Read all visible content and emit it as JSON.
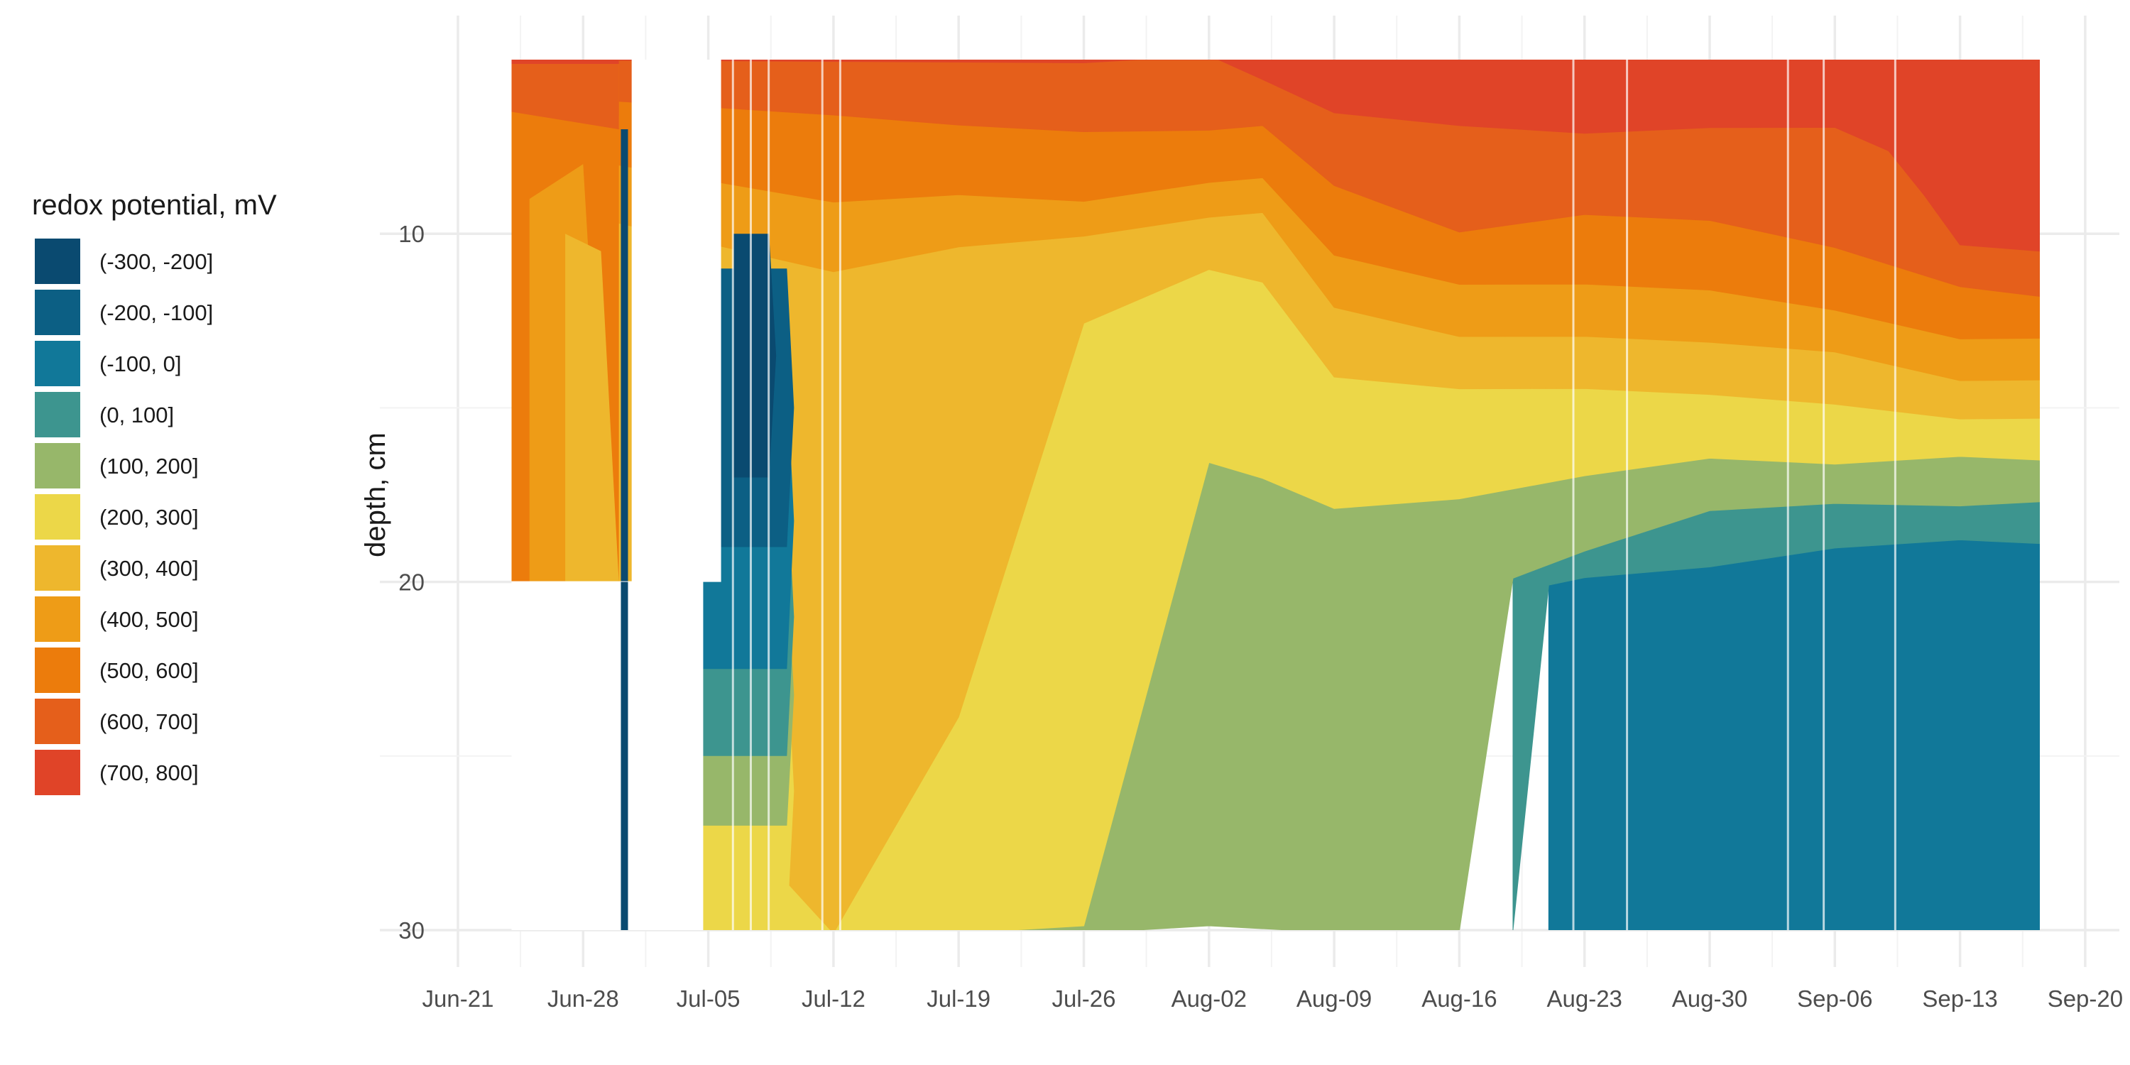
{
  "chart_data": {
    "type": "area",
    "title": "",
    "xlabel": "",
    "ylabel": "depth, cm",
    "legend_title": "redox potential, mV",
    "legend_position": "left",
    "grid": true,
    "x_ticks": [
      "Jun-21",
      "Jun-28",
      "Jul-05",
      "Jul-12",
      "Jul-19",
      "Jul-26",
      "Aug-02",
      "Aug-09",
      "Aug-16",
      "Aug-23",
      "Aug-30",
      "Sep-06",
      "Sep-13",
      "Sep-20"
    ],
    "x_range_days": [
      0,
      91
    ],
    "y_ticks": [
      10,
      20,
      30
    ],
    "ylim": [
      5,
      30
    ],
    "y_reversed": true,
    "classes": [
      {
        "label": "(-300, -200]",
        "color": "#0a4a70"
      },
      {
        "label": "(-200, -100]",
        "color": "#0c5f84"
      },
      {
        "label": "(-100, 0]",
        "color": "#117899"
      },
      {
        "label": "(0, 100]",
        "color": "#3d958f"
      },
      {
        "label": "(100, 200]",
        "color": "#97b76a"
      },
      {
        "label": "(200, 300]",
        "color": "#ecd748"
      },
      {
        "label": "(300, 400]",
        "color": "#eeb72d"
      },
      {
        "label": "(400, 500]",
        "color": "#ee9c17"
      },
      {
        "label": "(500, 600]",
        "color": "#ec7c0c"
      },
      {
        "label": "(600, 700]",
        "color": "#e55f1b"
      },
      {
        "label": "(700, 800]",
        "color": "#e04428"
      }
    ],
    "series": [
      {
        "name": "(700, 800]",
        "class": 10,
        "lower_depth_by_date": [
          [
            "Jun-24",
            5
          ],
          [
            "Jul-26",
            5
          ],
          [
            "Aug-02",
            5
          ],
          [
            "Aug-05",
            5.5
          ],
          [
            "Aug-09",
            6.5
          ],
          [
            "Aug-16",
            7
          ],
          [
            "Aug-23",
            7
          ],
          [
            "Aug-30",
            7
          ],
          [
            "Sep-06",
            7
          ],
          [
            "Sep-09",
            7.5
          ],
          [
            "Sep-11",
            9
          ],
          [
            "Sep-13",
            10.3
          ],
          [
            "Sep-18",
            10.5
          ]
        ]
      },
      {
        "name": "(600, 700]",
        "class": 9,
        "lower_depth_by_date": [
          [
            "Jun-24",
            6
          ],
          [
            "Jul-12",
            6.5
          ],
          [
            "Jul-19",
            7
          ],
          [
            "Jul-26",
            7
          ],
          [
            "Aug-02",
            7
          ],
          [
            "Aug-05",
            7
          ],
          [
            "Aug-09",
            8.5
          ],
          [
            "Aug-16",
            10
          ],
          [
            "Aug-23",
            9.5
          ],
          [
            "Aug-30",
            9.5
          ],
          [
            "Sep-06",
            10.5
          ],
          [
            "Sep-13",
            11.5
          ],
          [
            "Sep-18",
            11.8
          ]
        ]
      },
      {
        "name": "(500, 600]",
        "class": 8,
        "lower_depth_by_date": [
          [
            "Jun-24",
            7.5
          ],
          [
            "Jul-12",
            9
          ],
          [
            "Jul-19",
            9
          ],
          [
            "Jul-26",
            9
          ],
          [
            "Aug-02",
            8.5
          ],
          [
            "Aug-05",
            8.5
          ],
          [
            "Aug-09",
            10.5
          ],
          [
            "Aug-16",
            11.5
          ],
          [
            "Aug-23",
            11.5
          ],
          [
            "Aug-30",
            11.5
          ],
          [
            "Sep-06",
            12.3
          ],
          [
            "Sep-13",
            13
          ],
          [
            "Sep-18",
            13
          ]
        ]
      },
      {
        "name": "(400, 500]",
        "class": 7,
        "lower_depth_by_date": [
          [
            "Jun-24",
            9
          ],
          [
            "Jul-12",
            11
          ],
          [
            "Jul-19",
            10.5
          ],
          [
            "Jul-26",
            10
          ],
          [
            "Aug-02",
            9.5
          ],
          [
            "Aug-05",
            9.5
          ],
          [
            "Aug-09",
            12
          ],
          [
            "Aug-16",
            13
          ],
          [
            "Aug-23",
            13
          ],
          [
            "Aug-30",
            13
          ],
          [
            "Sep-06",
            13.5
          ],
          [
            "Sep-13",
            14.2
          ],
          [
            "Sep-18",
            14.2
          ]
        ]
      },
      {
        "name": "(300, 400]",
        "class": 6,
        "lower_depth_by_date": [
          [
            "Jun-24",
            20
          ],
          [
            "Jul-12",
            30
          ],
          [
            "Jul-19",
            24
          ],
          [
            "Jul-26",
            12.5
          ],
          [
            "Aug-02",
            11
          ],
          [
            "Aug-05",
            11.5
          ],
          [
            "Aug-09",
            14
          ],
          [
            "Aug-16",
            14.5
          ],
          [
            "Aug-23",
            14.5
          ],
          [
            "Aug-30",
            14.5
          ],
          [
            "Sep-06",
            15
          ],
          [
            "Sep-13",
            15.3
          ],
          [
            "Sep-18",
            15.3
          ]
        ]
      },
      {
        "name": "(200, 300]",
        "class": 5,
        "lower_depth_by_date": [
          [
            "Jun-24",
            30
          ],
          [
            "Jul-19",
            30
          ],
          [
            "Jul-26",
            30
          ],
          [
            "Aug-02",
            16.5
          ],
          [
            "Aug-05",
            17
          ],
          [
            "Aug-09",
            18
          ],
          [
            "Aug-16",
            17.5
          ],
          [
            "Aug-23",
            17
          ],
          [
            "Aug-30",
            16.5
          ],
          [
            "Sep-06",
            16.5
          ],
          [
            "Sep-13",
            16.5
          ],
          [
            "Sep-18",
            16.5
          ]
        ]
      },
      {
        "name": "(100, 200]",
        "class": 4,
        "lower_depth_by_date": [
          [
            "Jun-24",
            30
          ],
          [
            "Jul-26",
            30
          ],
          [
            "Aug-02",
            30
          ],
          [
            "Aug-09",
            30
          ],
          [
            "Aug-16",
            30
          ],
          [
            "Aug-19",
            20
          ],
          [
            "Aug-23",
            19
          ],
          [
            "Aug-30",
            18
          ],
          [
            "Sep-06",
            17.8
          ],
          [
            "Sep-13",
            17.7
          ],
          [
            "Sep-18",
            17.7
          ]
        ]
      },
      {
        "name": "(0, 100]",
        "class": 3,
        "lower_depth_by_date": [
          [
            "Aug-19",
            30
          ],
          [
            "Aug-21",
            20
          ],
          [
            "Aug-23",
            20
          ],
          [
            "Aug-30",
            19.5
          ],
          [
            "Sep-06",
            19
          ],
          [
            "Sep-13",
            18.9
          ],
          [
            "Sep-18",
            18.9
          ]
        ]
      },
      {
        "name": "(-100, 0]",
        "class": 2,
        "lower_depth_by_date": [
          [
            "Aug-21",
            30
          ],
          [
            "Sep-18",
            30
          ]
        ]
      }
    ],
    "gaps": [
      {
        "from": "Jun-30",
        "to": "Jul-05",
        "depth_range": [
          5,
          20
        ]
      },
      {
        "from": "Jun-21",
        "to": "Jul-04",
        "depth_range": [
          20,
          30
        ]
      }
    ],
    "early_reducing_zone": {
      "from": "Jul-04",
      "to": "Jul-09",
      "classes": [
        "(-300, -200]",
        "(-200, -100]",
        "(-100, 0]",
        "(0, 100]",
        "(100, 200]",
        "(200, 300]"
      ]
    }
  }
}
